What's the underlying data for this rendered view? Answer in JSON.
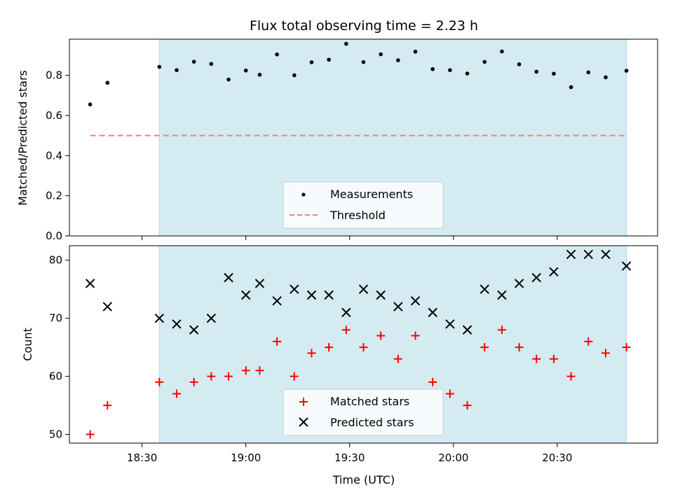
{
  "chart_data": [
    {
      "type": "scatter",
      "title": "Flux total observing time = 2.23 h",
      "xlabel": "",
      "ylabel": "Matched/Predicted stars",
      "ylim": [
        0,
        0.98
      ],
      "yticks": [
        "0.0",
        "0.2",
        "0.4",
        "0.6",
        "0.8"
      ],
      "ytick_values": [
        0,
        0.2,
        0.4,
        0.6,
        0.8
      ],
      "xlim": [
        "18:09",
        "20:59"
      ],
      "xticks": [
        "18:30",
        "19:00",
        "19:30",
        "20:00",
        "20:30"
      ],
      "highlight_span": [
        "18:35",
        "20:50"
      ],
      "highlight_color": "#d4ebf2",
      "legend_placement": "lower-center",
      "series": [
        {
          "name": "Measurements",
          "marker": "dot",
          "color": "#000000",
          "x": [
            "18:15",
            "18:20",
            "18:35",
            "18:40",
            "18:45",
            "18:50",
            "18:55",
            "19:00",
            "19:04",
            "19:09",
            "19:14",
            "19:19",
            "19:24",
            "19:29",
            "19:34",
            "19:39",
            "19:44",
            "19:49",
            "19:54",
            "19:59",
            "20:04",
            "20:09",
            "20:14",
            "20:19",
            "20:24",
            "20:29",
            "20:34",
            "20:39",
            "20:44",
            "20:50"
          ],
          "y": [
            0.655,
            0.763,
            0.842,
            0.826,
            0.868,
            0.857,
            0.779,
            0.824,
            0.803,
            0.904,
            0.8,
            0.865,
            0.878,
            0.957,
            0.866,
            0.905,
            0.875,
            0.918,
            0.831,
            0.826,
            0.809,
            0.867,
            0.919,
            0.855,
            0.818,
            0.808,
            0.741,
            0.815,
            0.79,
            0.823
          ]
        },
        {
          "name": "Threshold",
          "marker": "dashed-line",
          "color": "#f08080",
          "x": [
            "18:15",
            "20:50"
          ],
          "y": [
            0.5,
            0.5
          ]
        }
      ]
    },
    {
      "type": "scatter",
      "title": "",
      "xlabel": "Time (UTC)",
      "ylabel": "Count",
      "ylim": [
        48.5,
        82.5
      ],
      "yticks": [
        "50",
        "60",
        "70",
        "80"
      ],
      "ytick_values": [
        50,
        60,
        70,
        80
      ],
      "xlim": [
        "18:09",
        "20:59"
      ],
      "xticks": [
        "18:30",
        "19:00",
        "19:30",
        "20:00",
        "20:30"
      ],
      "highlight_span": [
        "18:35",
        "20:50"
      ],
      "highlight_color": "#d4ebf2",
      "legend_placement": "lower-center",
      "series": [
        {
          "name": "Matched stars",
          "marker": "plus",
          "color": "#ff0000",
          "x": [
            "18:15",
            "18:20",
            "18:35",
            "18:40",
            "18:45",
            "18:50",
            "18:55",
            "19:00",
            "19:04",
            "19:09",
            "19:14",
            "19:19",
            "19:24",
            "19:29",
            "19:34",
            "19:39",
            "19:44",
            "19:49",
            "19:54",
            "19:59",
            "20:04",
            "20:09",
            "20:14",
            "20:19",
            "20:24",
            "20:29",
            "20:34",
            "20:39",
            "20:44",
            "20:50"
          ],
          "y": [
            50,
            55,
            59,
            57,
            59,
            60,
            60,
            61,
            61,
            66,
            60,
            64,
            65,
            68,
            65,
            67,
            63,
            67,
            59,
            57,
            55,
            65,
            68,
            65,
            63,
            63,
            60,
            66,
            64,
            65
          ]
        },
        {
          "name": "Predicted stars",
          "marker": "x",
          "color": "#000000",
          "x": [
            "18:15",
            "18:20",
            "18:35",
            "18:40",
            "18:45",
            "18:50",
            "18:55",
            "19:00",
            "19:04",
            "19:09",
            "19:14",
            "19:19",
            "19:24",
            "19:29",
            "19:34",
            "19:39",
            "19:44",
            "19:49",
            "19:54",
            "19:59",
            "20:04",
            "20:09",
            "20:14",
            "20:19",
            "20:24",
            "20:29",
            "20:34",
            "20:39",
            "20:44",
            "20:50"
          ],
          "y": [
            76,
            72,
            70,
            69,
            68,
            70,
            77,
            74,
            76,
            73,
            75,
            74,
            74,
            71,
            75,
            74,
            72,
            73,
            71,
            69,
            68,
            75,
            74,
            76,
            77,
            78,
            81,
            81,
            81,
            79
          ]
        }
      ]
    }
  ]
}
